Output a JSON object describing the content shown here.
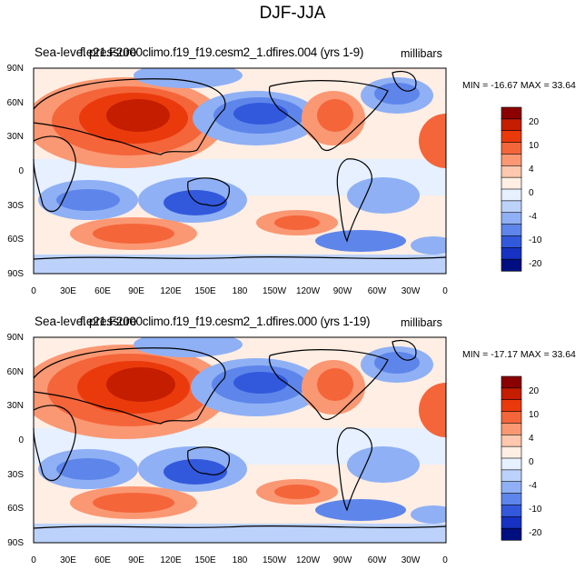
{
  "figure": {
    "title": "DJF-JJA",
    "units": "millibars",
    "lat_ticks": [
      "90N",
      "60N",
      "30N",
      "0",
      "30S",
      "60S",
      "90S"
    ],
    "lon_ticks": [
      "0",
      "30E",
      "60E",
      "90E",
      "120E",
      "150E",
      "180",
      "150W",
      "120W",
      "90W",
      "60W",
      "30W",
      "0"
    ]
  },
  "colorbar": {
    "labels": [
      "20",
      "10",
      "4",
      "0",
      "-4",
      "-10",
      "-20"
    ],
    "colors": [
      "#8b0000",
      "#c41d00",
      "#ea3a0c",
      "#f5653a",
      "#fa9873",
      "#fdc8ad",
      "#feeee4",
      "#e6f0ff",
      "#bcd2fb",
      "#8fb0f4",
      "#5e85ea",
      "#3259dc",
      "#1632c2",
      "#000f80"
    ]
  },
  "panels": [
    {
      "id": "top",
      "title_a": "Sea-level pressure",
      "title_b": "f.e21.F2000climo.f19_f19.cesm2_1.dfires.004 (yrs 1-9)",
      "minmax": "MIN = -16.67 MAX =  33.64"
    },
    {
      "id": "bottom",
      "title_a": "Sea-level pressure",
      "title_b": "f.e21.F2000climo.f19_f19.cesm2_1.dfires.000 (yrs 1-19)",
      "minmax": "MIN = -17.17 MAX =  33.64"
    }
  ]
}
